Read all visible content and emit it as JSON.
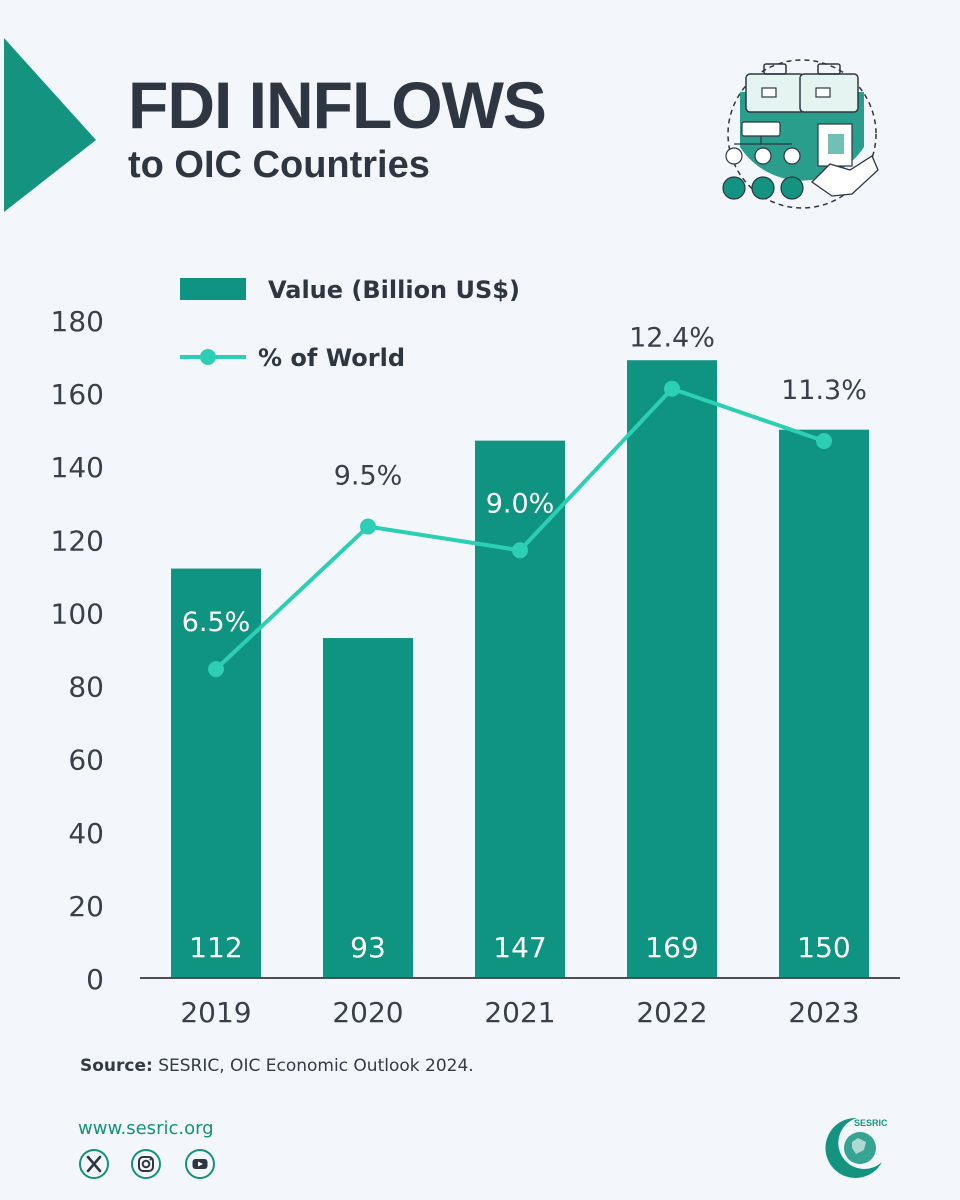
{
  "header": {
    "title": "FDI INFLOWS",
    "subtitle": "to OIC Countries"
  },
  "colors": {
    "bar": "#109482",
    "line": "#2dcfb4",
    "accent": "#149480",
    "text": "#2e3641",
    "background": "#f3f7fc"
  },
  "chart_data": {
    "type": "bar",
    "categories": [
      "2019",
      "2020",
      "2021",
      "2022",
      "2023"
    ],
    "series": [
      {
        "name": "Value (Billion US$)",
        "type": "bar",
        "values": [
          112,
          93,
          147,
          169,
          150
        ],
        "labels": [
          "112",
          "93",
          "147",
          "169",
          "150"
        ]
      },
      {
        "name": "% of World",
        "type": "line",
        "values": [
          6.5,
          9.5,
          9.0,
          12.4,
          11.3
        ],
        "labels": [
          "6.5%",
          "9.5%",
          "9.0%",
          "12.4%",
          "11.3%"
        ]
      }
    ],
    "y_ticks": [
      "0",
      "20",
      "40",
      "60",
      "80",
      "100",
      "120",
      "140",
      "160",
      "180"
    ],
    "ylim": [
      0,
      180
    ],
    "xlabel": "",
    "ylabel": "",
    "legend_position": "top-left",
    "grid": false
  },
  "source": {
    "label": "Source:",
    "text": " SESRIC, OIC Economic Outlook 2024."
  },
  "footer": {
    "website": "www.sesric.org",
    "social_icons": [
      "x-icon",
      "instagram-icon",
      "youtube-icon"
    ],
    "logo_text": "SESRIC"
  }
}
